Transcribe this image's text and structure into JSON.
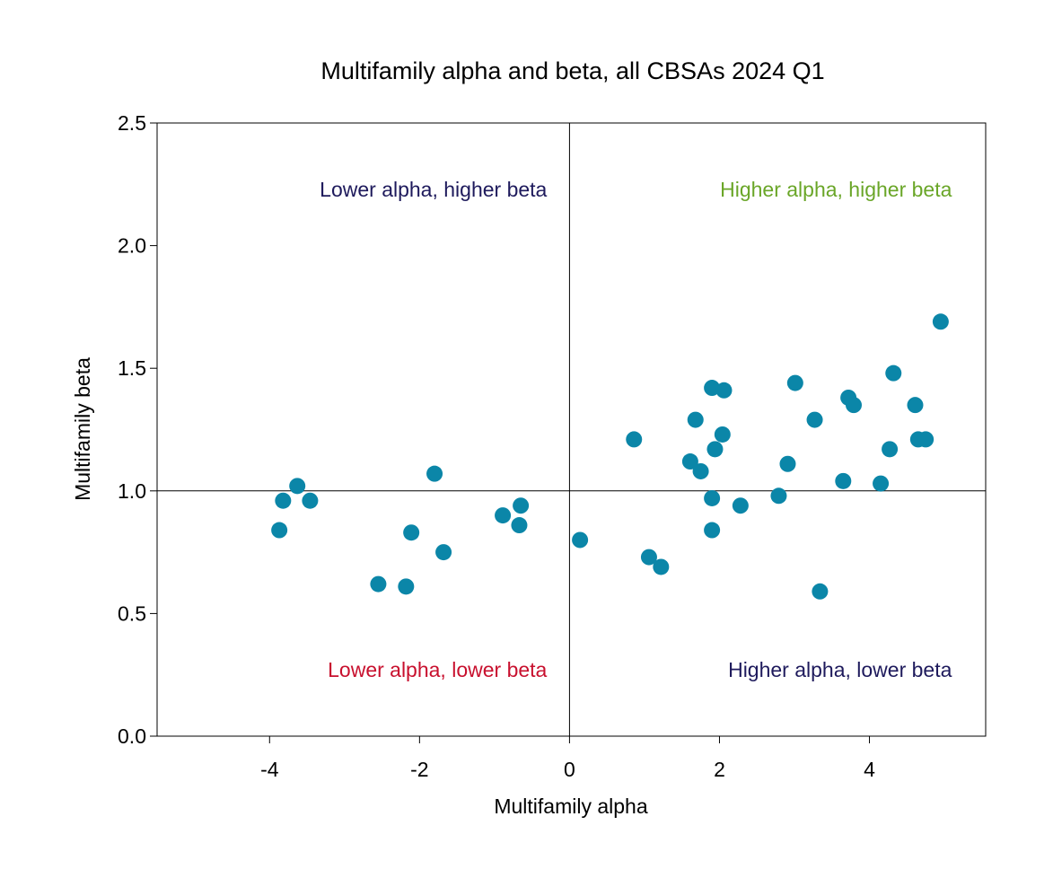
{
  "chart_data": {
    "type": "scatter",
    "title": "Multifamily alpha and beta, all CBSAs 2024 Q1",
    "xlabel": "Multifamily alpha",
    "ylabel": "Multifamily beta",
    "xlim": [
      -5.5,
      5.55
    ],
    "ylim": [
      0,
      2.5
    ],
    "x_ticks": [
      -4,
      -2,
      0,
      2,
      4
    ],
    "x_tick_labels": [
      "-4",
      "-2",
      "0",
      "2",
      "4"
    ],
    "y_ticks": [
      0,
      0.5,
      1.0,
      1.5,
      2.0,
      2.5
    ],
    "y_tick_labels": [
      "0.0",
      "0.5",
      "1.0",
      "1.5",
      "2.0",
      "2.5"
    ],
    "reference_lines": {
      "x": 0,
      "y": 1.0
    },
    "grid": false,
    "colors": {
      "points": "#0b86a8",
      "navy": "#1e1a5c",
      "green": "#6aa628",
      "red": "#c8102e"
    },
    "annotations": [
      {
        "text": "Lower alpha, higher beta",
        "color": "#1e1a5c",
        "x": -0.3,
        "y": 2.23,
        "align": "end"
      },
      {
        "text": "Higher alpha, higher beta",
        "color": "#6aa628",
        "x": 5.1,
        "y": 2.23,
        "align": "end"
      },
      {
        "text": "Lower alpha, lower beta",
        "color": "#c8102e",
        "x": -0.3,
        "y": 0.27,
        "align": "end"
      },
      {
        "text": "Higher alpha, lower beta",
        "color": "#1e1a5c",
        "x": 5.1,
        "y": 0.27,
        "align": "end"
      }
    ],
    "points": [
      [
        4.95,
        1.69
      ],
      [
        4.32,
        1.48
      ],
      [
        3.01,
        1.44
      ],
      [
        1.9,
        1.42
      ],
      [
        2.06,
        1.41
      ],
      [
        3.72,
        1.38
      ],
      [
        3.79,
        1.35
      ],
      [
        4.61,
        1.35
      ],
      [
        1.68,
        1.29
      ],
      [
        3.27,
        1.29
      ],
      [
        2.04,
        1.23
      ],
      [
        0.86,
        1.21
      ],
      [
        4.65,
        1.21
      ],
      [
        4.75,
        1.21
      ],
      [
        1.94,
        1.17
      ],
      [
        4.27,
        1.17
      ],
      [
        1.61,
        1.12
      ],
      [
        2.91,
        1.11
      ],
      [
        1.75,
        1.08
      ],
      [
        3.65,
        1.04
      ],
      [
        4.15,
        1.03
      ],
      [
        2.79,
        0.98
      ],
      [
        1.9,
        0.97
      ],
      [
        2.28,
        0.94
      ],
      [
        1.9,
        0.84
      ],
      [
        0.14,
        0.8
      ],
      [
        1.06,
        0.73
      ],
      [
        1.22,
        0.69
      ],
      [
        3.34,
        0.59
      ],
      [
        -3.63,
        1.02
      ],
      [
        -3.82,
        0.96
      ],
      [
        -3.46,
        0.96
      ],
      [
        -3.87,
        0.84
      ],
      [
        -1.8,
        1.07
      ],
      [
        -0.65,
        0.94
      ],
      [
        -0.89,
        0.9
      ],
      [
        -0.67,
        0.86
      ],
      [
        -2.11,
        0.83
      ],
      [
        -1.68,
        0.75
      ],
      [
        -2.55,
        0.62
      ],
      [
        -2.18,
        0.61
      ]
    ]
  }
}
